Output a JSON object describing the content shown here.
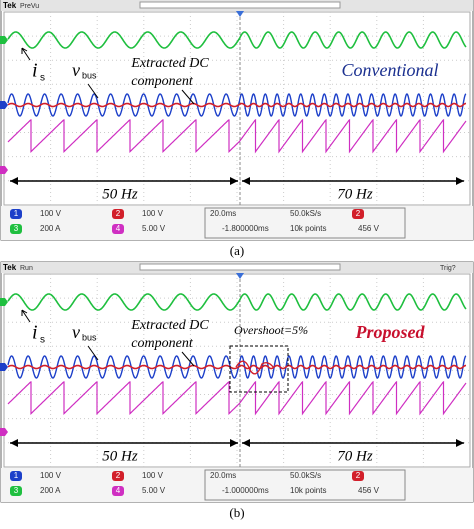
{
  "panels": [
    {
      "header": {
        "brand": "Tek",
        "status": "PreVu"
      },
      "labels": {
        "current": "i",
        "current_sub": "s",
        "voltage": "v",
        "voltage_sub": "bus",
        "extracted_1": "Extracted DC",
        "extracted_2": "component",
        "method": "Conventional"
      },
      "intervals": [
        "50 Hz",
        "70 Hz"
      ],
      "status_bar": {
        "channels": [
          {
            "num": "1",
            "scale": "100 V"
          },
          {
            "num": "2",
            "scale": "100 V"
          },
          {
            "num": "3",
            "scale": "200 A"
          },
          {
            "num": "4",
            "scale": "5.00 V"
          }
        ],
        "timebase": "20.0ms",
        "delay": "-1.800000ms",
        "sample_rate": "50.0kS/s",
        "points": "10k points",
        "trigger_channel": "2",
        "trigger_level": "456 V"
      },
      "caption": "(a)"
    },
    {
      "header": {
        "brand": "Tek",
        "status": "Run",
        "trigger": "Trig?"
      },
      "labels": {
        "current": "i",
        "current_sub": "s",
        "voltage": "v",
        "voltage_sub": "bus",
        "extracted_1": "Extracted DC",
        "extracted_2": "component",
        "method": "Proposed",
        "overshoot": "Overshoot=5%"
      },
      "intervals": [
        "50 Hz",
        "70 Hz"
      ],
      "status_bar": {
        "channels": [
          {
            "num": "1",
            "scale": "100 V"
          },
          {
            "num": "2",
            "scale": "100 V"
          },
          {
            "num": "3",
            "scale": "200 A"
          },
          {
            "num": "4",
            "scale": "5.00 V"
          }
        ],
        "timebase": "20.0ms",
        "delay": "-1.000000ms",
        "sample_rate": "50.0kS/s",
        "points": "10k points",
        "trigger_channel": "2",
        "trigger_level": "456 V"
      },
      "caption": "(b)"
    }
  ]
}
